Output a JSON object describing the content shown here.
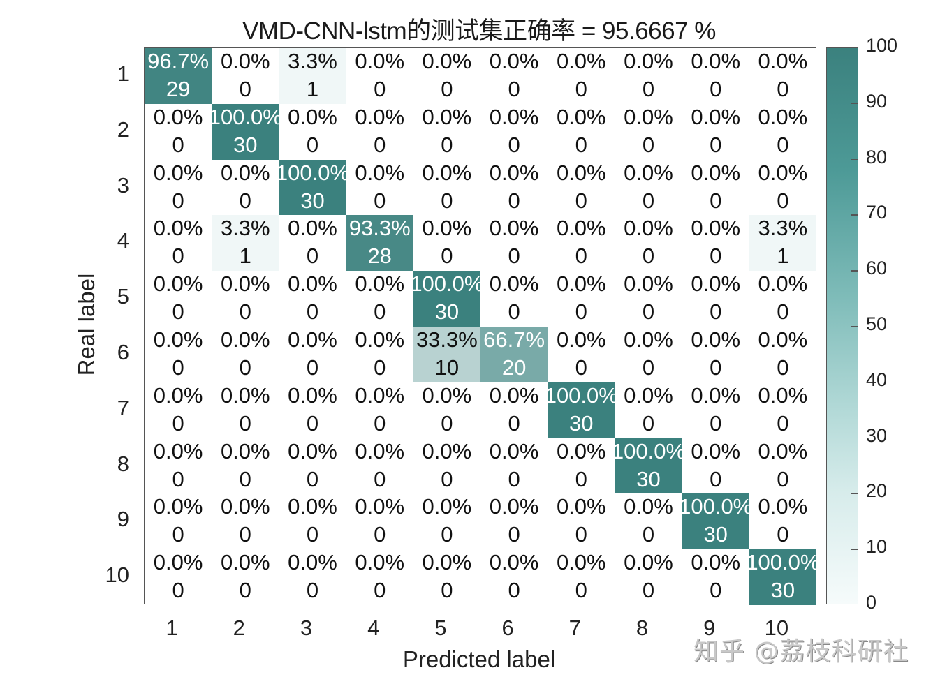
{
  "chart_data": {
    "type": "heatmap",
    "title": "VMD-CNN-lstm的测试集正确率 = 95.6667 %",
    "xlabel": "Predicted label",
    "ylabel": "Real label",
    "x_categories": [
      "1",
      "2",
      "3",
      "4",
      "5",
      "6",
      "7",
      "8",
      "9",
      "10"
    ],
    "y_categories": [
      "1",
      "2",
      "3",
      "4",
      "5",
      "6",
      "7",
      "8",
      "9",
      "10"
    ],
    "counts": [
      [
        29,
        0,
        1,
        0,
        0,
        0,
        0,
        0,
        0,
        0
      ],
      [
        0,
        30,
        0,
        0,
        0,
        0,
        0,
        0,
        0,
        0
      ],
      [
        0,
        0,
        30,
        0,
        0,
        0,
        0,
        0,
        0,
        0
      ],
      [
        0,
        1,
        0,
        28,
        0,
        0,
        0,
        0,
        0,
        1
      ],
      [
        0,
        0,
        0,
        0,
        30,
        0,
        0,
        0,
        0,
        0
      ],
      [
        0,
        0,
        0,
        0,
        10,
        20,
        0,
        0,
        0,
        0
      ],
      [
        0,
        0,
        0,
        0,
        0,
        0,
        30,
        0,
        0,
        0
      ],
      [
        0,
        0,
        0,
        0,
        0,
        0,
        0,
        30,
        0,
        0
      ],
      [
        0,
        0,
        0,
        0,
        0,
        0,
        0,
        0,
        30,
        0
      ],
      [
        0,
        0,
        0,
        0,
        0,
        0,
        0,
        0,
        0,
        30
      ]
    ],
    "percentages": [
      [
        "96.7%",
        "0.0%",
        "3.3%",
        "0.0%",
        "0.0%",
        "0.0%",
        "0.0%",
        "0.0%",
        "0.0%",
        "0.0%"
      ],
      [
        "0.0%",
        "100.0%",
        "0.0%",
        "0.0%",
        "0.0%",
        "0.0%",
        "0.0%",
        "0.0%",
        "0.0%",
        "0.0%"
      ],
      [
        "0.0%",
        "0.0%",
        "100.0%",
        "0.0%",
        "0.0%",
        "0.0%",
        "0.0%",
        "0.0%",
        "0.0%",
        "0.0%"
      ],
      [
        "0.0%",
        "3.3%",
        "0.0%",
        "93.3%",
        "0.0%",
        "0.0%",
        "0.0%",
        "0.0%",
        "0.0%",
        "3.3%"
      ],
      [
        "0.0%",
        "0.0%",
        "0.0%",
        "0.0%",
        "100.0%",
        "0.0%",
        "0.0%",
        "0.0%",
        "0.0%",
        "0.0%"
      ],
      [
        "0.0%",
        "0.0%",
        "0.0%",
        "0.0%",
        "33.3%",
        "66.7%",
        "0.0%",
        "0.0%",
        "0.0%",
        "0.0%"
      ],
      [
        "0.0%",
        "0.0%",
        "0.0%",
        "0.0%",
        "0.0%",
        "0.0%",
        "100.0%",
        "0.0%",
        "0.0%",
        "0.0%"
      ],
      [
        "0.0%",
        "0.0%",
        "0.0%",
        "0.0%",
        "0.0%",
        "0.0%",
        "0.0%",
        "100.0%",
        "0.0%",
        "0.0%"
      ],
      [
        "0.0%",
        "0.0%",
        "0.0%",
        "0.0%",
        "0.0%",
        "0.0%",
        "0.0%",
        "0.0%",
        "100.0%",
        "0.0%"
      ],
      [
        "0.0%",
        "0.0%",
        "0.0%",
        "0.0%",
        "0.0%",
        "0.0%",
        "0.0%",
        "0.0%",
        "0.0%",
        "100.0%"
      ]
    ],
    "colorbar": {
      "range": [
        0,
        100
      ],
      "ticks": [
        "0",
        "10",
        "20",
        "30",
        "40",
        "50",
        "60",
        "70",
        "80",
        "90",
        "100"
      ],
      "color_low": "#f6fbfb",
      "color_high": "#3b817e"
    },
    "grid": false
  },
  "watermark": "知乎 @荔枝科研社"
}
